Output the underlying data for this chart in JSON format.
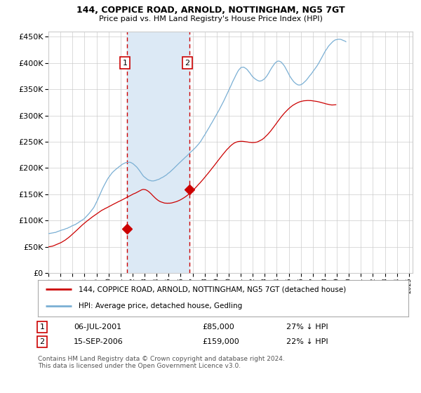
{
  "title": "144, COPPICE ROAD, ARNOLD, NOTTINGHAM, NG5 7GT",
  "subtitle": "Price paid vs. HM Land Registry's House Price Index (HPI)",
  "legend_entry1": "144, COPPICE ROAD, ARNOLD, NOTTINGHAM, NG5 7GT (detached house)",
  "legend_entry2": "HPI: Average price, detached house, Gedling",
  "annotation1_date": "06-JUL-2001",
  "annotation1_price": "£85,000",
  "annotation1_hpi": "27% ↓ HPI",
  "annotation2_date": "15-SEP-2006",
  "annotation2_price": "£159,000",
  "annotation2_hpi": "22% ↓ HPI",
  "footer": "Contains HM Land Registry data © Crown copyright and database right 2024.\nThis data is licensed under the Open Government Licence v3.0.",
  "purchase1_year": 2001.52,
  "purchase1_price": 85000,
  "purchase2_year": 2006.71,
  "purchase2_price": 159000,
  "hpi_color": "#7aafd4",
  "price_color": "#cc0000",
  "shade_color": "#dce9f5",
  "vline_color": "#cc0000",
  "ylim": [
    0,
    460000
  ],
  "yticks": [
    0,
    50000,
    100000,
    150000,
    200000,
    250000,
    300000,
    350000,
    400000,
    450000
  ],
  "background_color": "#ffffff",
  "grid_color": "#cccccc",
  "hpi_monthly": [
    75000,
    75200,
    75500,
    75800,
    76200,
    76600,
    77100,
    77600,
    78200,
    78900,
    79600,
    80300,
    81000,
    81700,
    82400,
    83100,
    83800,
    84500,
    85200,
    85900,
    86700,
    87500,
    88300,
    89100,
    90000,
    91000,
    92100,
    93200,
    94400,
    95600,
    96900,
    98200,
    99600,
    101000,
    102500,
    104000,
    105600,
    107300,
    109100,
    111000,
    113000,
    115200,
    117500,
    120000,
    122800,
    125800,
    129000,
    132500,
    136200,
    140100,
    144200,
    148400,
    152700,
    157000,
    161200,
    165200,
    169100,
    172800,
    176200,
    179500,
    182500,
    185300,
    187900,
    190300,
    192600,
    194700,
    196700,
    198600,
    200300,
    201900,
    203400,
    204800,
    206100,
    207300,
    208400,
    209400,
    210200,
    210900,
    211400,
    211800,
    212000,
    211900,
    211500,
    210800,
    209800,
    208500,
    206900,
    205000,
    202800,
    200400,
    197800,
    195100,
    192300,
    189600,
    187000,
    184600,
    182500,
    180700,
    179200,
    178000,
    177100,
    176400,
    175900,
    175600,
    175500,
    175600,
    175800,
    176100,
    176600,
    177200,
    177900,
    178700,
    179600,
    180600,
    181600,
    182800,
    184000,
    185300,
    186700,
    188200,
    189700,
    191300,
    192900,
    194600,
    196300,
    198000,
    199800,
    201600,
    203400,
    205200,
    207100,
    209000,
    210900,
    212900,
    214900,
    216900,
    218900,
    220900,
    222900,
    224900,
    226900,
    228900,
    230800,
    232700,
    234600,
    236600,
    238600,
    240700,
    242900,
    245200,
    247700,
    250300,
    253000,
    255800,
    258700,
    261600,
    264600,
    267600,
    270700,
    273800,
    277000,
    280200,
    283400,
    286700,
    290000,
    293300,
    296700,
    300100,
    303500,
    307000,
    310500,
    314100,
    317700,
    321400,
    325100,
    328900,
    332700,
    336600,
    340600,
    344600,
    348700,
    352800,
    357000,
    361200,
    365400,
    369600,
    373700,
    377600,
    381300,
    384700,
    387700,
    390100,
    391900,
    393000,
    393500,
    393300,
    392600,
    391300,
    389600,
    387600,
    385300,
    382900,
    380500,
    378100,
    375900,
    373900,
    372200,
    370700,
    369500,
    368600,
    368000,
    367800,
    368000,
    368600,
    369600,
    371000,
    372800,
    374900,
    377400,
    380200,
    383200,
    386400,
    389700,
    392900,
    395900,
    398700,
    401200,
    403200,
    404700,
    405500,
    405700,
    405200,
    404100,
    402400,
    400100,
    397400,
    394300,
    391000,
    387500,
    383900,
    380300,
    376900,
    373700,
    370800,
    368200,
    365900,
    363900,
    362300,
    361100,
    360300,
    360000,
    360100,
    360600,
    361500,
    362800,
    364400,
    366200,
    368200,
    370400,
    372700,
    375000,
    377400,
    379800,
    382300,
    384800,
    387300,
    389900,
    392600,
    395400,
    398300,
    401400,
    404700,
    408100,
    411600,
    415100,
    418600,
    422000,
    425300,
    428400,
    431400,
    434200,
    436800,
    439100,
    441200,
    443000,
    444500,
    445700,
    446600,
    447200,
    447500,
    447600,
    447400,
    447000,
    446400,
    445600,
    444600,
    443500,
    442200
  ],
  "price_monthly": [
    50000,
    50200,
    50500,
    50900,
    51400,
    52000,
    52700,
    53400,
    54200,
    55000,
    55900,
    56800,
    57800,
    58800,
    59900,
    61000,
    62200,
    63400,
    64700,
    66100,
    67600,
    69100,
    70700,
    72400,
    74100,
    75900,
    77700,
    79500,
    81300,
    83100,
    84900,
    86700,
    88500,
    90300,
    92100,
    93800,
    95500,
    97200,
    98800,
    100400,
    101900,
    103400,
    104900,
    106400,
    107800,
    109200,
    110600,
    111900,
    113200,
    114500,
    115800,
    117000,
    118200,
    119400,
    120500,
    121600,
    122700,
    123800,
    124800,
    125900,
    126900,
    127900,
    128900,
    129900,
    130900,
    131900,
    132900,
    133900,
    134900,
    135900,
    136900,
    137900,
    138900,
    139900,
    140900,
    141900,
    142900,
    143900,
    144900,
    145900,
    146900,
    147900,
    148900,
    149900,
    150900,
    151900,
    152900,
    153900,
    154900,
    155900,
    156900,
    157900,
    158900,
    159900,
    160600,
    160900,
    160800,
    160300,
    159400,
    158200,
    156700,
    155000,
    153200,
    151300,
    149300,
    147400,
    145500,
    143800,
    142100,
    140600,
    139300,
    138100,
    137100,
    136300,
    135600,
    135100,
    134700,
    134500,
    134400,
    134400,
    134500,
    134700,
    135000,
    135400,
    135900,
    136400,
    137000,
    137700,
    138400,
    139200,
    140100,
    141000,
    142000,
    143000,
    144100,
    145300,
    146500,
    147800,
    149200,
    150600,
    152100,
    153700,
    155400,
    157100,
    158900,
    160800,
    162700,
    164700,
    166700,
    168800,
    170900,
    173000,
    175200,
    177400,
    179700,
    182000,
    184300,
    186600,
    188900,
    191300,
    193700,
    196100,
    198500,
    200900,
    203400,
    205800,
    208300,
    210800,
    213200,
    215700,
    218200,
    220700,
    223100,
    225600,
    228000,
    230400,
    232700,
    234900,
    237100,
    239200,
    241200,
    243100,
    244900,
    246500,
    248000,
    249300,
    250400,
    251300,
    252100,
    252700,
    253100,
    253300,
    253400,
    253400,
    253300,
    253100,
    252900,
    252600,
    252300,
    252000,
    251700,
    251400,
    251200,
    251000,
    251000,
    251100,
    251300,
    251600,
    252100,
    252700,
    253500,
    254400,
    255500,
    256700,
    258100,
    259700,
    261400,
    263200,
    265200,
    267300,
    269500,
    271800,
    274200,
    276600,
    279100,
    281600,
    284200,
    286700,
    289300,
    291900,
    294400,
    296900,
    299400,
    301800,
    304200,
    306500,
    308700,
    310800,
    312800,
    314700,
    316500,
    318200,
    319800,
    321300,
    322700,
    324000,
    325200,
    326300,
    327300,
    328200,
    329000,
    329700,
    330300,
    330800,
    331300,
    331700,
    332000,
    332200,
    332400,
    332500,
    332500,
    332400,
    332300,
    332100,
    331900,
    331600,
    331300,
    330900,
    330500,
    330000,
    329500,
    329000,
    328400,
    327900,
    327300,
    326800,
    326200,
    325700,
    325200,
    324700,
    324300,
    323900,
    323600,
    323400,
    323300,
    323200,
    323300,
    323500
  ]
}
